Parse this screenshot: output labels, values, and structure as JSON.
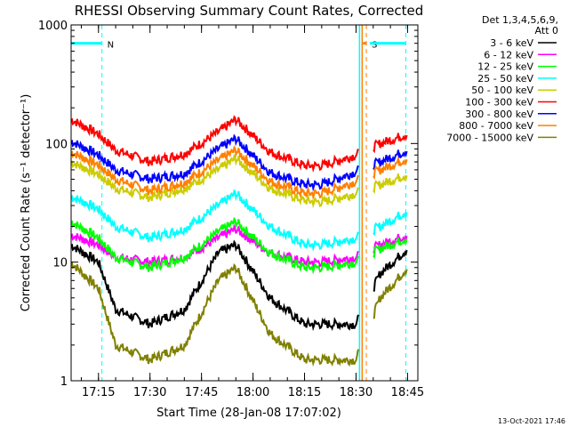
{
  "chart_data": {
    "type": "line",
    "title": "RHESSI Observing Summary Count Rates, Corrected",
    "xlabel": "Start Time (28-Jan-08 17:07:02)",
    "ylabel": "Corrected Count Rate (s⁻¹ detector⁻¹)",
    "y_scale": "log",
    "ylim": [
      1,
      1000
    ],
    "y_ticks": [
      "1",
      "10",
      "100",
      "1000"
    ],
    "xlim": [
      "17:07:02",
      "18:48:00"
    ],
    "x_ticks": [
      "17:15",
      "17:30",
      "17:45",
      "18:00",
      "18:15",
      "18:30",
      "18:45"
    ],
    "grid": false,
    "legend_position": "top-right",
    "legend_header": [
      "Det 1,3,4,5,6,9,",
      "Att 0"
    ],
    "flags": [
      {
        "label": "N",
        "color": "#00ffff",
        "level": 700,
        "x_start": "17:07:02",
        "x_end": "17:16:00",
        "line_style": "dashed"
      },
      {
        "label": "S",
        "color": "#ff8000",
        "level": 700,
        "x_start": "18:32:00",
        "x_end": "18:33:00",
        "line_style": "dashed"
      },
      {
        "label": "",
        "color": "#00ffff",
        "level": 700,
        "x_start": "18:34:00",
        "x_end": "18:44:30",
        "line_style": "dashed"
      }
    ],
    "gaps": [
      {
        "start": "18:31:00",
        "end": "18:35:00"
      }
    ],
    "series": [
      {
        "name": "3 - 6 keV",
        "color": "#000000",
        "x": [
          "17:07",
          "17:15",
          "17:20",
          "17:30",
          "17:40",
          "17:50",
          "17:55",
          "18:05",
          "18:15",
          "18:20",
          "18:30",
          "18:37",
          "18:45"
        ],
        "values": [
          14,
          10,
          4,
          3,
          4,
          12,
          14,
          5,
          3,
          3,
          3,
          8,
          13
        ]
      },
      {
        "name": "6 - 12 keV",
        "color": "#ff00ff",
        "x": [
          "17:07",
          "17:15",
          "17:20",
          "17:30",
          "17:40",
          "17:50",
          "17:55",
          "18:05",
          "18:15",
          "18:20",
          "18:30",
          "18:37",
          "18:45"
        ],
        "values": [
          17,
          14,
          11,
          10,
          11,
          16,
          19,
          12,
          10,
          10,
          11,
          14,
          17
        ]
      },
      {
        "name": "12 - 25 keV",
        "color": "#00ff00",
        "x": [
          "17:07",
          "17:15",
          "17:20",
          "17:30",
          "17:40",
          "17:50",
          "17:55",
          "18:05",
          "18:15",
          "18:20",
          "18:30",
          "18:37",
          "18:45"
        ],
        "values": [
          22,
          16,
          11,
          9,
          11,
          18,
          22,
          12,
          9,
          9,
          10,
          13,
          16
        ]
      },
      {
        "name": "25 - 50 keV",
        "color": "#00ffff",
        "x": [
          "17:07",
          "17:15",
          "17:20",
          "17:30",
          "17:40",
          "17:50",
          "17:55",
          "18:05",
          "18:15",
          "18:20",
          "18:30",
          "18:37",
          "18:45"
        ],
        "values": [
          36,
          28,
          20,
          16,
          19,
          30,
          38,
          20,
          14,
          14,
          16,
          20,
          27
        ]
      },
      {
        "name": "50 - 100 keV",
        "color": "#cccc00",
        "x": [
          "17:07",
          "17:15",
          "17:20",
          "17:30",
          "17:40",
          "17:50",
          "17:55",
          "18:05",
          "18:15",
          "18:20",
          "18:30",
          "18:37",
          "18:45"
        ],
        "values": [
          70,
          55,
          42,
          35,
          42,
          60,
          75,
          42,
          33,
          32,
          38,
          45,
          55
        ]
      },
      {
        "name": "100 - 300 keV",
        "color": "#ff0000",
        "x": [
          "17:07",
          "17:15",
          "17:20",
          "17:30",
          "17:40",
          "17:50",
          "17:55",
          "18:05",
          "18:15",
          "18:20",
          "18:30",
          "18:37",
          "18:45"
        ],
        "values": [
          160,
          120,
          88,
          70,
          82,
          125,
          160,
          85,
          65,
          65,
          80,
          100,
          120
        ]
      },
      {
        "name": "300 - 800 keV",
        "color": "#0000ff",
        "x": [
          "17:07",
          "17:15",
          "17:20",
          "17:30",
          "17:40",
          "17:50",
          "17:55",
          "18:05",
          "18:15",
          "18:20",
          "18:30",
          "18:37",
          "18:45"
        ],
        "values": [
          105,
          80,
          60,
          50,
          56,
          90,
          110,
          57,
          45,
          45,
          58,
          70,
          88
        ]
      },
      {
        "name": "800 - 7000 keV",
        "color": "#ff8000",
        "x": [
          "17:07",
          "17:15",
          "17:20",
          "17:30",
          "17:40",
          "17:50",
          "17:55",
          "18:05",
          "18:15",
          "18:20",
          "18:30",
          "18:37",
          "18:45"
        ],
        "values": [
          85,
          66,
          50,
          40,
          47,
          72,
          88,
          48,
          38,
          38,
          48,
          60,
          75
        ]
      },
      {
        "name": "7000 - 15000 keV",
        "color": "#808000",
        "x": [
          "17:07",
          "17:15",
          "17:20",
          "17:30",
          "17:40",
          "17:50",
          "17:55",
          "18:05",
          "18:15",
          "18:20",
          "18:30",
          "18:37",
          "18:45"
        ],
        "values": [
          10,
          6,
          2,
          1.5,
          2,
          7,
          9,
          2.5,
          1.5,
          1.5,
          1.5,
          5,
          9
        ]
      }
    ]
  },
  "footer": {
    "timestamp": "13-Oct-2021 17:46"
  }
}
